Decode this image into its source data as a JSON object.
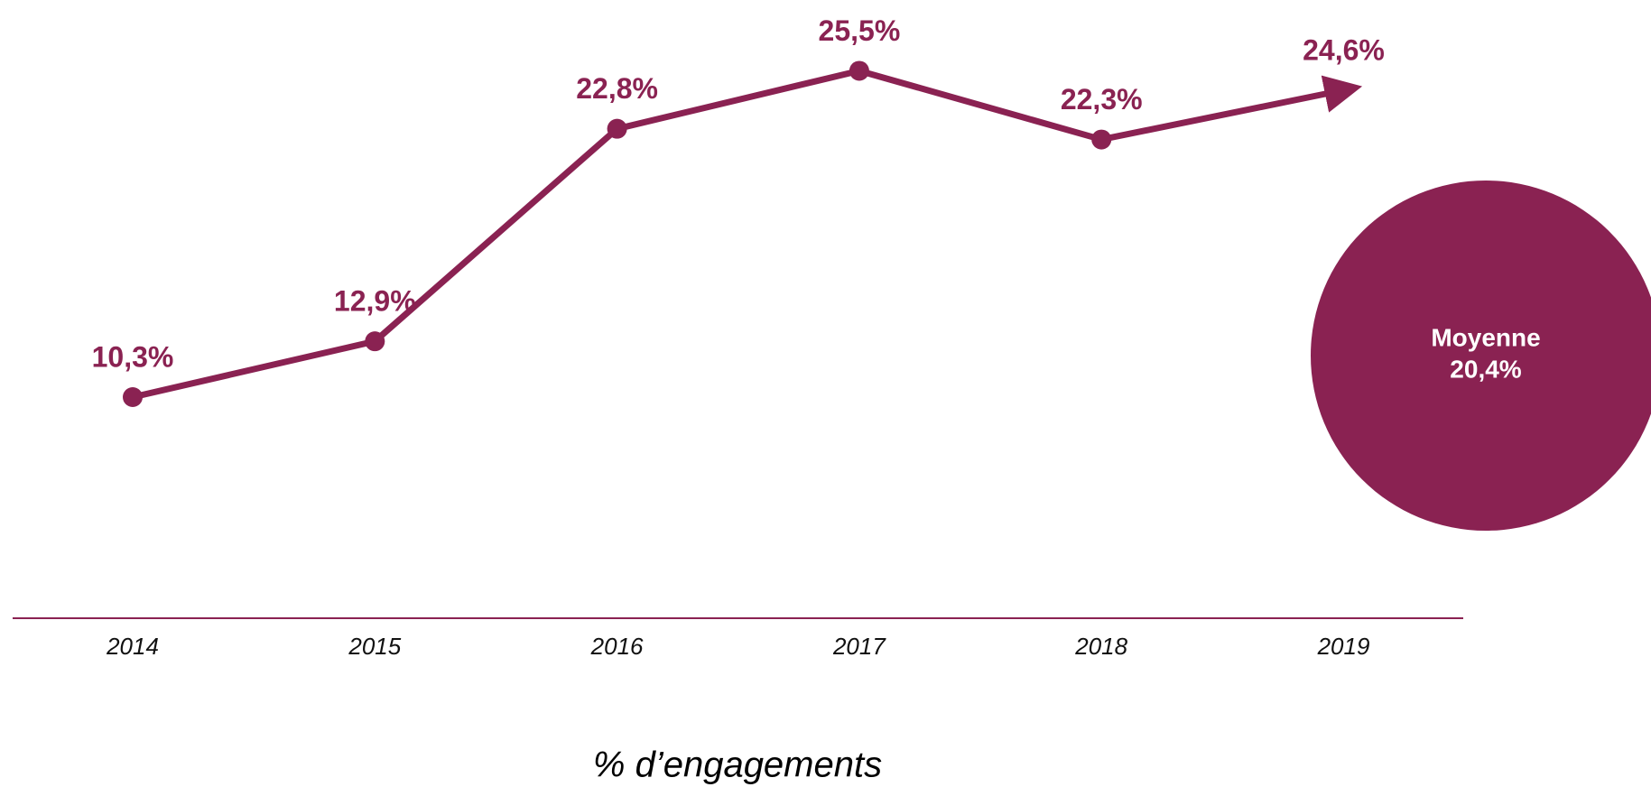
{
  "chart_data": {
    "type": "line",
    "title": "% d’engagements",
    "categories": [
      "2014",
      "2015",
      "2016",
      "2017",
      "2018",
      "2019"
    ],
    "series": [
      {
        "name": null,
        "color": "#8a2252",
        "values": [
          10.3,
          12.9,
          22.8,
          25.5,
          22.3,
          24.6
        ],
        "value_labels": [
          "10,3%",
          "12,9%",
          "22,8%",
          "25,5%",
          "22,3%",
          "24,6%"
        ]
      }
    ],
    "ylim": [
      0,
      28
    ],
    "annotation": {
      "label": "Moyenne",
      "value": 20.4,
      "value_label": "20,4%"
    }
  }
}
